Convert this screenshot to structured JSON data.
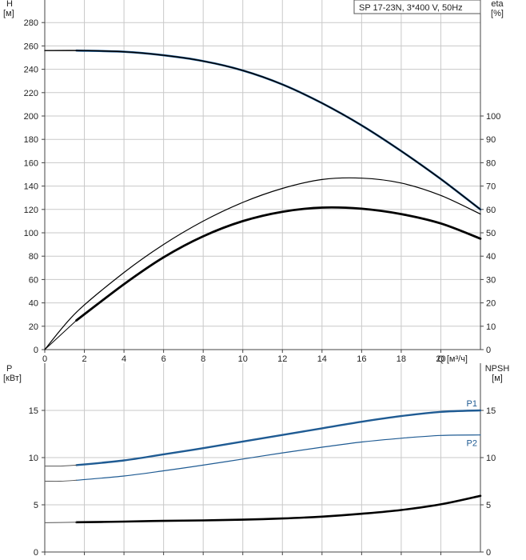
{
  "chart_data": [
    {
      "type": "line",
      "title": "SP 17-23N, 3*400 V, 50Hz",
      "x_axis": {
        "label": "Q [м³/ч]",
        "range": [
          0,
          22
        ],
        "ticks": [
          0,
          2,
          4,
          6,
          8,
          10,
          12,
          14,
          16,
          18,
          20
        ]
      },
      "y_axis_left": {
        "name": "H",
        "unit": "[м]",
        "range": [
          0,
          300
        ],
        "ticks": [
          0,
          20,
          40,
          60,
          80,
          100,
          120,
          140,
          160,
          180,
          200,
          220,
          240,
          260,
          280
        ]
      },
      "y_axis_right": {
        "name": "eta",
        "unit": "[%]",
        "range": [
          0,
          150
        ],
        "ticks": [
          0,
          10,
          20,
          30,
          40,
          50,
          60,
          70,
          80,
          90,
          100
        ]
      },
      "grid": true,
      "series": [
        {
          "axis": "left",
          "color": "#1f5b93",
          "width": 2.6,
          "x": [
            1.6,
            4,
            6,
            8,
            10,
            12,
            14,
            16,
            18,
            20,
            22
          ],
          "y": [
            256,
            255,
            252,
            247,
            239,
            227,
            211,
            192,
            170,
            146,
            120
          ]
        },
        {
          "axis": "left",
          "color": "#000000",
          "width": 1.4,
          "extension": true,
          "x": [
            0,
            2,
            4,
            6,
            8,
            10,
            12,
            14,
            16,
            18,
            20,
            22
          ],
          "y": [
            256,
            256,
            255,
            252,
            247,
            239,
            227,
            211,
            192,
            170,
            146,
            120
          ]
        },
        {
          "axis": "right",
          "color": "#000000",
          "width": 1.2,
          "x": [
            0,
            1.6,
            4,
            6,
            8,
            10,
            12,
            14,
            16,
            18,
            20,
            22
          ],
          "y": [
            0,
            16,
            33,
            45,
            55,
            63,
            69,
            72.8,
            73.4,
            71.3,
            66,
            58
          ]
        },
        {
          "axis": "right",
          "color": "#000000",
          "width": 2.8,
          "x": [
            1.6,
            4,
            6,
            8,
            10,
            12,
            14,
            16,
            18,
            20,
            22
          ],
          "y": [
            12.5,
            28,
            39.5,
            48.5,
            55,
            59,
            60.8,
            60.3,
            58,
            54,
            47.5
          ]
        },
        {
          "axis": "right",
          "color": "#000000",
          "width": 1.0,
          "extension": true,
          "x": [
            0,
            1.6
          ],
          "y": [
            0,
            12.5
          ]
        }
      ]
    },
    {
      "type": "line",
      "x_axis": {
        "range": [
          0,
          22
        ],
        "ticks": [
          0,
          2,
          4,
          6,
          8,
          10,
          12,
          14,
          16,
          18,
          20
        ]
      },
      "y_axis_left": {
        "name": "P",
        "unit": "[кВт]",
        "range": [
          0,
          20
        ],
        "ticks": [
          0,
          5,
          10,
          15
        ]
      },
      "y_axis_right": {
        "name": "NPSH",
        "unit": "[м]",
        "range": [
          0,
          20
        ],
        "ticks": [
          0,
          5,
          10,
          15
        ]
      },
      "grid": true,
      "series": [
        {
          "name": "P1",
          "axis": "left",
          "color": "#1f5b93",
          "width": 2.4,
          "x": [
            1.6,
            4,
            6,
            8,
            10,
            12,
            14,
            16,
            18,
            20,
            22
          ],
          "y": [
            9.2,
            9.7,
            10.35,
            11.0,
            11.7,
            12.4,
            13.1,
            13.8,
            14.4,
            14.85,
            15.0
          ]
        },
        {
          "axis": "left",
          "color": "#555555",
          "width": 1.0,
          "extension": true,
          "x": [
            0,
            0.8,
            1.6
          ],
          "y": [
            9.1,
            9.1,
            9.2
          ]
        },
        {
          "name": "P2",
          "axis": "left",
          "color": "#1f5b93",
          "width": 1.2,
          "x": [
            1.6,
            4,
            6,
            8,
            10,
            12,
            14,
            16,
            18,
            20,
            22
          ],
          "y": [
            7.6,
            8.05,
            8.6,
            9.2,
            9.85,
            10.5,
            11.1,
            11.65,
            12.05,
            12.35,
            12.4
          ]
        },
        {
          "axis": "left",
          "color": "#555555",
          "width": 1.0,
          "extension": true,
          "x": [
            0,
            0.8,
            1.6
          ],
          "y": [
            7.5,
            7.5,
            7.6
          ]
        },
        {
          "axis": "right",
          "color": "#000000",
          "width": 2.6,
          "x": [
            1.6,
            4,
            6,
            8,
            10,
            12,
            14,
            16,
            18,
            20,
            22
          ],
          "y": [
            3.15,
            3.22,
            3.3,
            3.35,
            3.42,
            3.55,
            3.75,
            4.05,
            4.45,
            5.05,
            5.95
          ]
        },
        {
          "axis": "right",
          "color": "#555555",
          "width": 1.0,
          "extension": true,
          "x": [
            0,
            1.6
          ],
          "y": [
            3.1,
            3.15
          ]
        }
      ]
    }
  ]
}
